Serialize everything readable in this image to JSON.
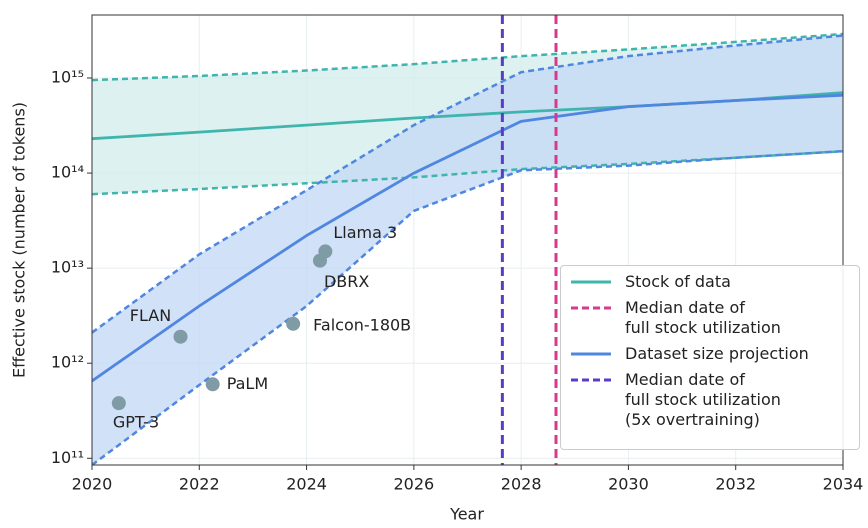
{
  "chart_data": {
    "type": "line",
    "xlabel": "Year",
    "ylabel": "Effective stock (number of tokens)",
    "xlim": [
      2020,
      2034
    ],
    "xticks": [
      2020,
      2022,
      2024,
      2026,
      2028,
      2030,
      2032,
      2034
    ],
    "ylim": [
      85000000000,
      4600000000000000
    ],
    "log_y": true,
    "grid": true,
    "yticks": [
      {
        "value": 100000000000,
        "label": "10¹¹"
      },
      {
        "value": 1000000000000,
        "label": "10¹²"
      },
      {
        "value": 10000000000000,
        "label": "10¹³"
      },
      {
        "value": 100000000000000,
        "label": "10¹⁴"
      },
      {
        "value": 1000000000000000,
        "label": "10¹⁵"
      }
    ],
    "x": [
      2020,
      2022,
      2024,
      2026,
      2028,
      2030,
      2032,
      2034
    ],
    "series": [
      {
        "name": "Stock of data",
        "color": "#3fb5ad",
        "band_color": "#d3eeec",
        "values": [
          230000000000000,
          270000000000000,
          320000000000000,
          380000000000000,
          440000000000000,
          500000000000000,
          580000000000000,
          700000000000000
        ],
        "lower": [
          60000000000000,
          68000000000000,
          78000000000000,
          90000000000000,
          110000000000000,
          125000000000000,
          145000000000000,
          170000000000000
        ],
        "upper": [
          950000000000000,
          1050000000000000,
          1200000000000000,
          1400000000000000,
          1700000000000000,
          2000000000000000,
          2400000000000000,
          2900000000000000
        ]
      },
      {
        "name": "Dataset size projection",
        "color": "#4f86e0",
        "band_color": "#c6d9f5",
        "values": [
          650000000000,
          4000000000000,
          22000000000000,
          100000000000000,
          350000000000000,
          500000000000000,
          580000000000000,
          660000000000000
        ],
        "lower": [
          85000000000,
          590000000000,
          4000000000000,
          40000000000000,
          107000000000000,
          120000000000000,
          145000000000000,
          170000000000000
        ],
        "upper": [
          2100000000000,
          14000000000000,
          66000000000000,
          320000000000000,
          1150000000000000,
          1700000000000000,
          2200000000000000,
          2800000000000000
        ]
      }
    ],
    "vlines": [
      {
        "name": "Median date of\nfull stock utilization",
        "color": "#d63a8e",
        "x": 2028.65
      },
      {
        "name": "Median date of\nfull stock utilization\n(5x overtraining)",
        "color": "#5c3cc4",
        "x": 2027.65
      }
    ],
    "points": {
      "color": "#7f9ba6",
      "labels": [
        "GPT-3",
        "FLAN",
        "PaLM",
        "Falcon-180B",
        "DBRX",
        "Llama 3"
      ],
      "x": [
        2020.5,
        2021.65,
        2022.25,
        2023.75,
        2024.25,
        2024.35
      ],
      "values": [
        380000000000,
        1900000000000,
        600000000000,
        2600000000000,
        12000000000000,
        15000000000000
      ]
    },
    "legend_position": "lower right"
  }
}
